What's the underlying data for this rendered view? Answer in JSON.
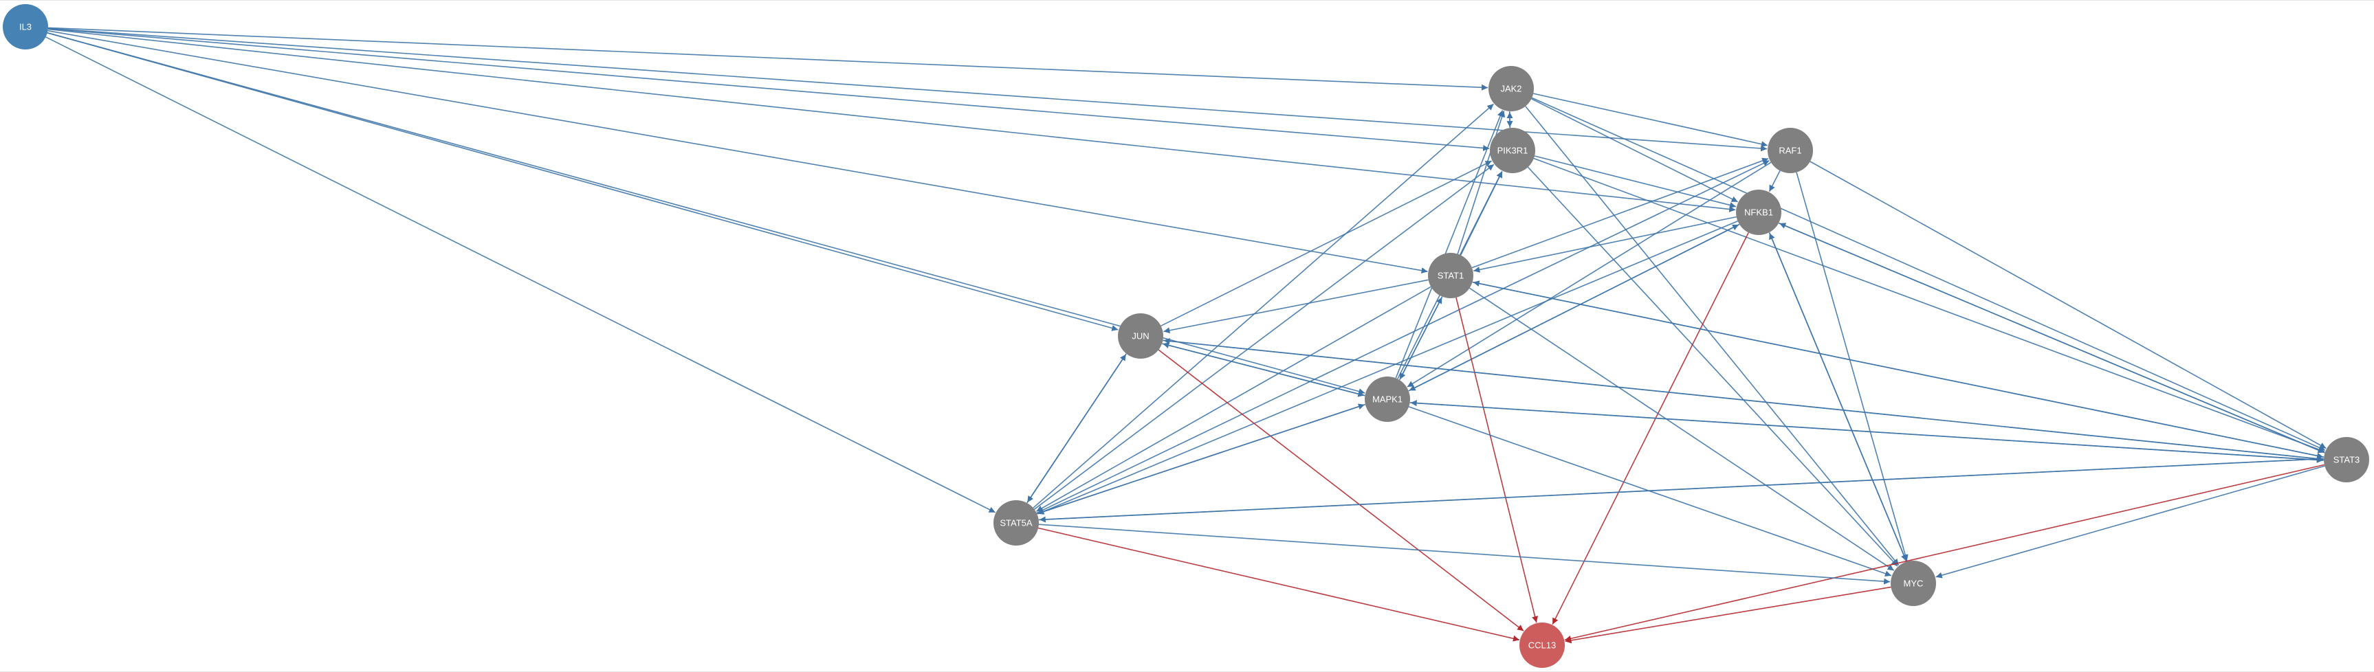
{
  "colors": {
    "activation_edge": "#3e74a8",
    "inhibition_edge": "#b2282e",
    "source_node": "#4682b4",
    "target_node": "#cd5c5c",
    "intermediate_node": "#808080",
    "label": "#ffffff",
    "background": "#ffffff"
  },
  "nodes": [
    {
      "id": "IL3",
      "label": "IL3",
      "role": "source"
    },
    {
      "id": "JAK2",
      "label": "JAK2",
      "role": "intermediate"
    },
    {
      "id": "PIK3R1",
      "label": "PIK3R1",
      "role": "intermediate"
    },
    {
      "id": "RAF1",
      "label": "RAF1",
      "role": "intermediate"
    },
    {
      "id": "NFKB1",
      "label": "NFKB1",
      "role": "intermediate"
    },
    {
      "id": "STAT1",
      "label": "STAT1",
      "role": "intermediate"
    },
    {
      "id": "JUN",
      "label": "JUN",
      "role": "intermediate"
    },
    {
      "id": "MAPK1",
      "label": "MAPK1",
      "role": "intermediate"
    },
    {
      "id": "STAT3",
      "label": "STAT3",
      "role": "intermediate"
    },
    {
      "id": "STAT5A",
      "label": "STAT5A",
      "role": "intermediate"
    },
    {
      "id": "MYC",
      "label": "MYC",
      "role": "intermediate"
    },
    {
      "id": "CCL13",
      "label": "CCL13",
      "role": "target"
    }
  ],
  "edges": [
    {
      "from": "IL3",
      "to": "JAK2",
      "type": "activation"
    },
    {
      "from": "IL3",
      "to": "PIK3R1",
      "type": "activation"
    },
    {
      "from": "IL3",
      "to": "RAF1",
      "type": "activation"
    },
    {
      "from": "IL3",
      "to": "NFKB1",
      "type": "activation"
    },
    {
      "from": "IL3",
      "to": "STAT1",
      "type": "activation"
    },
    {
      "from": "IL3",
      "to": "JUN",
      "type": "activation"
    },
    {
      "from": "IL3",
      "to": "MAPK1",
      "type": "activation"
    },
    {
      "from": "IL3",
      "to": "STAT5A",
      "type": "activation"
    },
    {
      "from": "JAK2",
      "to": "PIK3R1",
      "type": "activation"
    },
    {
      "from": "PIK3R1",
      "to": "JAK2",
      "type": "activation"
    },
    {
      "from": "JAK2",
      "to": "RAF1",
      "type": "activation"
    },
    {
      "from": "JAK2",
      "to": "NFKB1",
      "type": "activation"
    },
    {
      "from": "JAK2",
      "to": "STAT3",
      "type": "activation"
    },
    {
      "from": "JAK2",
      "to": "MYC",
      "type": "activation"
    },
    {
      "from": "STAT1",
      "to": "JAK2",
      "type": "activation"
    },
    {
      "from": "MAPK1",
      "to": "JAK2",
      "type": "activation"
    },
    {
      "from": "STAT5A",
      "to": "JAK2",
      "type": "activation"
    },
    {
      "from": "PIK3R1",
      "to": "NFKB1",
      "type": "activation"
    },
    {
      "from": "PIK3R1",
      "to": "MYC",
      "type": "activation"
    },
    {
      "from": "PIK3R1",
      "to": "STAT3",
      "type": "activation"
    },
    {
      "from": "STAT1",
      "to": "PIK3R1",
      "type": "activation"
    },
    {
      "from": "JUN",
      "to": "PIK3R1",
      "type": "activation"
    },
    {
      "from": "MAPK1",
      "to": "PIK3R1",
      "type": "activation"
    },
    {
      "from": "STAT5A",
      "to": "PIK3R1",
      "type": "activation"
    },
    {
      "from": "RAF1",
      "to": "NFKB1",
      "type": "activation"
    },
    {
      "from": "RAF1",
      "to": "STAT3",
      "type": "activation"
    },
    {
      "from": "RAF1",
      "to": "MYC",
      "type": "activation"
    },
    {
      "from": "RAF1",
      "to": "MAPK1",
      "type": "activation"
    },
    {
      "from": "STAT1",
      "to": "RAF1",
      "type": "activation"
    },
    {
      "from": "STAT5A",
      "to": "RAF1",
      "type": "activation"
    },
    {
      "from": "NFKB1",
      "to": "STAT1",
      "type": "activation"
    },
    {
      "from": "NFKB1",
      "to": "MAPK1",
      "type": "activation"
    },
    {
      "from": "NFKB1",
      "to": "STAT3",
      "type": "activation"
    },
    {
      "from": "NFKB1",
      "to": "STAT5A",
      "type": "activation"
    },
    {
      "from": "NFKB1",
      "to": "MYC",
      "type": "activation"
    },
    {
      "from": "NFKB1",
      "to": "CCL13",
      "type": "inhibition"
    },
    {
      "from": "MYC",
      "to": "NFKB1",
      "type": "activation"
    },
    {
      "from": "STAT3",
      "to": "NFKB1",
      "type": "activation"
    },
    {
      "from": "MAPK1",
      "to": "NFKB1",
      "type": "activation"
    },
    {
      "from": "STAT1",
      "to": "JUN",
      "type": "activation"
    },
    {
      "from": "STAT1",
      "to": "MAPK1",
      "type": "activation"
    },
    {
      "from": "STAT1",
      "to": "STAT3",
      "type": "activation"
    },
    {
      "from": "STAT1",
      "to": "STAT5A",
      "type": "activation"
    },
    {
      "from": "STAT1",
      "to": "MYC",
      "type": "activation"
    },
    {
      "from": "STAT1",
      "to": "CCL13",
      "type": "inhibition"
    },
    {
      "from": "MAPK1",
      "to": "STAT1",
      "type": "activation"
    },
    {
      "from": "STAT3",
      "to": "STAT1",
      "type": "activation"
    },
    {
      "from": "JUN",
      "to": "MAPK1",
      "type": "activation"
    },
    {
      "from": "MAPK1",
      "to": "JUN",
      "type": "activation"
    },
    {
      "from": "JUN",
      "to": "STAT3",
      "type": "activation"
    },
    {
      "from": "JUN",
      "to": "STAT5A",
      "type": "activation"
    },
    {
      "from": "STAT5A",
      "to": "JUN",
      "type": "activation"
    },
    {
      "from": "JUN",
      "to": "CCL13",
      "type": "inhibition"
    },
    {
      "from": "STAT3",
      "to": "JUN",
      "type": "activation"
    },
    {
      "from": "MAPK1",
      "to": "STAT3",
      "type": "activation"
    },
    {
      "from": "STAT3",
      "to": "MAPK1",
      "type": "activation"
    },
    {
      "from": "MAPK1",
      "to": "STAT5A",
      "type": "activation"
    },
    {
      "from": "STAT5A",
      "to": "MAPK1",
      "type": "activation"
    },
    {
      "from": "MAPK1",
      "to": "MYC",
      "type": "activation"
    },
    {
      "from": "STAT3",
      "to": "STAT5A",
      "type": "activation"
    },
    {
      "from": "STAT5A",
      "to": "STAT3",
      "type": "activation"
    },
    {
      "from": "STAT3",
      "to": "MYC",
      "type": "activation"
    },
    {
      "from": "STAT3",
      "to": "CCL13",
      "type": "inhibition"
    },
    {
      "from": "STAT5A",
      "to": "MYC",
      "type": "activation"
    },
    {
      "from": "STAT5A",
      "to": "CCL13",
      "type": "inhibition"
    },
    {
      "from": "MYC",
      "to": "CCL13",
      "type": "inhibition"
    }
  ]
}
